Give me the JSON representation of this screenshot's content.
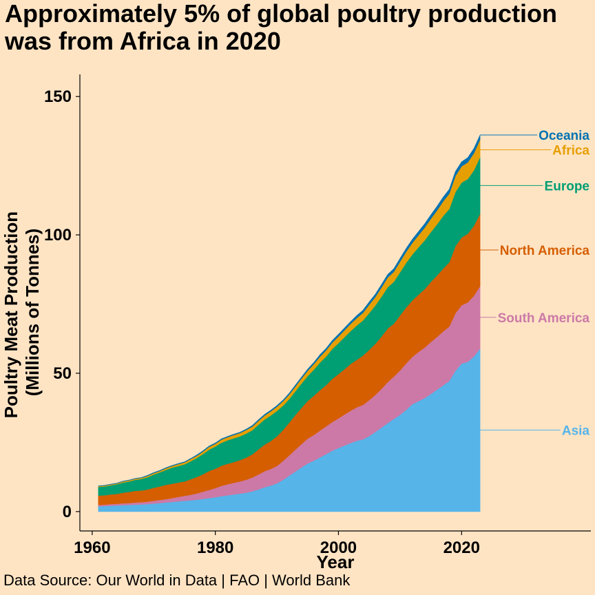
{
  "title": "Approximately 5% of global poultry production was from Africa in 2020",
  "source": "Data Source: Our World in Data | FAO | World Bank",
  "chart_data": {
    "type": "area",
    "stacked": true,
    "xlabel": "Year",
    "ylabel_line1": "Poultry Meat Production",
    "ylabel_line2": "(Millions of Tonnes)",
    "xlim": [
      1958,
      2041
    ],
    "ylim": [
      -7,
      158
    ],
    "xticks": [
      1960,
      1980,
      2000,
      2020
    ],
    "yticks": [
      0,
      50,
      100,
      150
    ],
    "grid": false,
    "legend": "direct labels at right end of each series",
    "x": [
      1961,
      1962,
      1963,
      1964,
      1965,
      1966,
      1967,
      1968,
      1969,
      1970,
      1971,
      1972,
      1973,
      1974,
      1975,
      1976,
      1977,
      1978,
      1979,
      1980,
      1981,
      1982,
      1983,
      1984,
      1985,
      1986,
      1987,
      1988,
      1989,
      1990,
      1991,
      1992,
      1993,
      1994,
      1995,
      1996,
      1997,
      1998,
      1999,
      2000,
      2001,
      2002,
      2003,
      2004,
      2005,
      2006,
      2007,
      2008,
      2009,
      2010,
      2011,
      2012,
      2013,
      2014,
      2015,
      2016,
      2017,
      2018,
      2019,
      2020,
      2021,
      2022,
      2023
    ],
    "series": [
      {
        "name": "Asia",
        "color": "#56b4e9",
        "values": [
          1.9,
          2.0,
          2.1,
          2.2,
          2.3,
          2.4,
          2.5,
          2.6,
          2.7,
          2.9,
          3.1,
          3.3,
          3.5,
          3.7,
          3.9,
          4.1,
          4.3,
          4.6,
          4.9,
          5.2,
          5.6,
          5.9,
          6.2,
          6.5,
          6.8,
          7.3,
          8.0,
          8.8,
          9.4,
          10.2,
          11.5,
          13.0,
          14.5,
          16.0,
          17.4,
          18.4,
          19.6,
          20.8,
          22.0,
          23.0,
          23.9,
          24.8,
          25.6,
          26.1,
          27.3,
          28.8,
          30.4,
          32.0,
          33.5,
          35.0,
          36.8,
          38.8,
          39.9,
          41.0,
          42.5,
          44.1,
          45.6,
          47.2,
          50.9,
          53.5,
          54.1,
          56.1,
          58.9
        ]
      },
      {
        "name": "South America",
        "color": "#cc79a7",
        "values": [
          0.5,
          0.5,
          0.6,
          0.6,
          0.7,
          0.7,
          0.8,
          0.8,
          0.9,
          1.0,
          1.1,
          1.2,
          1.4,
          1.6,
          1.8,
          2.0,
          2.3,
          2.6,
          2.9,
          3.3,
          3.7,
          4.0,
          4.2,
          4.4,
          4.7,
          5.0,
          5.4,
          5.8,
          6.0,
          6.3,
          6.8,
          7.3,
          7.9,
          8.4,
          9.0,
          9.3,
          9.7,
          10.0,
          10.4,
          10.7,
          11.2,
          11.7,
          12.1,
          12.5,
          13.0,
          13.4,
          14.0,
          14.8,
          15.3,
          16.0,
          16.8,
          17.1,
          17.8,
          18.3,
          18.8,
          19.0,
          19.5,
          19.7,
          20.8,
          21.1,
          21.5,
          21.9,
          22.6
        ]
      },
      {
        "name": "North America",
        "color": "#d55e00",
        "values": [
          3.4,
          3.4,
          3.5,
          3.6,
          3.8,
          4.0,
          4.2,
          4.2,
          4.4,
          4.7,
          4.9,
          5.2,
          5.2,
          5.2,
          5.2,
          5.6,
          5.9,
          6.3,
          6.9,
          7.0,
          7.3,
          7.4,
          7.5,
          7.7,
          8.0,
          8.4,
          9.1,
          9.6,
          10.1,
          10.7,
          11.2,
          11.9,
          12.5,
          13.1,
          13.6,
          14.2,
          14.6,
          14.9,
          15.6,
          16.0,
          16.4,
          16.9,
          17.2,
          17.8,
          18.2,
          18.5,
          18.9,
          19.4,
          19.1,
          19.9,
          20.2,
          20.4,
          20.7,
          21.1,
          21.7,
          22.2,
          22.7,
          23.2,
          24.2,
          24.5,
          24.8,
          25.3,
          26.1
        ]
      },
      {
        "name": "Europe",
        "color": "#009e73",
        "values": [
          3.1,
          3.2,
          3.3,
          3.5,
          3.7,
          3.8,
          4.0,
          4.2,
          4.4,
          4.8,
          5.1,
          5.4,
          5.8,
          6.0,
          6.2,
          6.5,
          6.9,
          7.3,
          7.7,
          8.0,
          8.3,
          8.5,
          8.6,
          8.6,
          8.7,
          8.7,
          8.9,
          9.1,
          9.2,
          9.2,
          8.8,
          8.5,
          8.6,
          8.8,
          9.0,
          9.4,
          10.0,
          10.4,
          10.8,
          11.2,
          11.6,
          11.9,
          12.4,
          12.7,
          13.3,
          13.8,
          14.4,
          14.9,
          15.2,
          15.6,
          16.1,
          16.6,
          17.1,
          17.6,
          18.0,
          18.5,
          19.0,
          19.3,
          19.6,
          19.8,
          19.8,
          20.0,
          20.5
        ]
      },
      {
        "name": "Africa",
        "color": "#e69f00",
        "values": [
          0.3,
          0.3,
          0.3,
          0.3,
          0.4,
          0.4,
          0.4,
          0.4,
          0.5,
          0.5,
          0.5,
          0.6,
          0.6,
          0.7,
          0.7,
          0.8,
          0.8,
          0.9,
          1.0,
          1.0,
          1.1,
          1.1,
          1.2,
          1.2,
          1.3,
          1.3,
          1.4,
          1.4,
          1.5,
          1.5,
          1.6,
          1.6,
          1.7,
          1.8,
          1.9,
          2.0,
          2.1,
          2.2,
          2.3,
          2.4,
          2.5,
          2.6,
          2.7,
          2.8,
          3.0,
          3.1,
          3.3,
          3.5,
          3.6,
          3.8,
          4.0,
          4.2,
          4.4,
          4.6,
          4.8,
          5.0,
          5.3,
          5.5,
          5.8,
          5.9,
          6.0,
          6.2,
          6.3
        ]
      },
      {
        "name": "Oceania",
        "color": "#0072b2",
        "values": [
          0.1,
          0.1,
          0.1,
          0.1,
          0.1,
          0.1,
          0.1,
          0.1,
          0.2,
          0.2,
          0.2,
          0.2,
          0.2,
          0.2,
          0.2,
          0.2,
          0.3,
          0.3,
          0.3,
          0.3,
          0.3,
          0.3,
          0.3,
          0.3,
          0.3,
          0.4,
          0.4,
          0.4,
          0.4,
          0.4,
          0.4,
          0.5,
          0.5,
          0.5,
          0.6,
          0.6,
          0.7,
          0.7,
          0.7,
          0.8,
          0.8,
          0.8,
          0.9,
          0.9,
          1.0,
          1.0,
          1.1,
          1.1,
          1.1,
          1.2,
          1.2,
          1.3,
          1.3,
          1.4,
          1.4,
          1.5,
          1.5,
          1.6,
          1.6,
          1.6,
          1.7,
          1.7,
          1.7
        ]
      }
    ]
  }
}
